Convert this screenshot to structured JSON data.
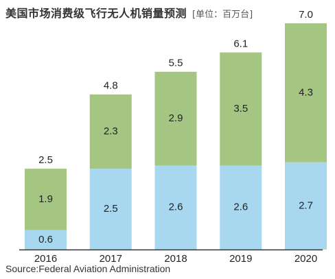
{
  "header": {
    "title": "美国市场消费级飞行无人机销量预测",
    "unit": "[单位：百万台]"
  },
  "source": "Source:Federal Aviation Administration",
  "colors": {
    "lower": "#a8d8f0",
    "upper": "#a5c583",
    "axis": "#333333",
    "label": "#222222"
  },
  "chart_data": {
    "type": "bar",
    "stacked": true,
    "title": "美国市场消费级飞行无人机销量预测",
    "ylabel": "",
    "xlabel": "",
    "unit": "[单位：百万台]",
    "categories": [
      "2016",
      "2017",
      "2018",
      "2019",
      "2020"
    ],
    "series": [
      {
        "values": [
          0.6,
          2.5,
          2.6,
          2.6,
          2.7
        ]
      },
      {
        "values": [
          1.9,
          2.3,
          2.9,
          3.5,
          4.3
        ]
      }
    ],
    "totals": [
      "2.5",
      "4.8",
      "5.5",
      "6.1",
      "7.0"
    ],
    "value_labels": [
      [
        "0.6",
        "2.5",
        "2.6",
        "2.6",
        "2.7"
      ],
      [
        "1.9",
        "2.3",
        "2.9",
        "3.5",
        "4.3"
      ]
    ],
    "ylim": [
      0,
      7.0
    ],
    "grid": false
  }
}
